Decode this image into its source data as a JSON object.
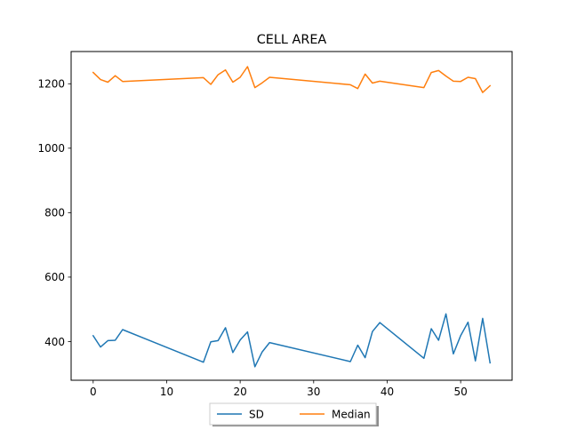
{
  "chart_data": {
    "type": "line",
    "title": "CELL AREA",
    "xlabel": "",
    "ylabel": "",
    "xlim": [
      -3,
      57
    ],
    "ylim": [
      280,
      1300
    ],
    "xticks": [
      0,
      10,
      20,
      30,
      40,
      50
    ],
    "yticks": [
      400,
      600,
      800,
      1000,
      1200
    ],
    "grid": false,
    "legend_position": "bottom-center",
    "series": [
      {
        "name": "SD",
        "color": "#1f77b4",
        "x": [
          0,
          1,
          2,
          3,
          4,
          15,
          16,
          17,
          18,
          19,
          20,
          21,
          22,
          23,
          24,
          35,
          36,
          37,
          38,
          39,
          45,
          46,
          47,
          48,
          49,
          50,
          51,
          52,
          53,
          54
        ],
        "y": [
          418,
          383,
          403,
          404,
          437,
          336,
          399,
          403,
          443,
          366,
          405,
          430,
          322,
          368,
          397,
          338,
          389,
          350,
          431,
          459,
          348,
          440,
          404,
          486,
          362,
          418,
          460,
          340,
          472,
          334
        ]
      },
      {
        "name": "Median",
        "color": "#ff7f0e",
        "x": [
          0,
          1,
          2,
          3,
          4,
          15,
          16,
          17,
          18,
          19,
          20,
          21,
          22,
          23,
          24,
          35,
          36,
          37,
          38,
          39,
          45,
          46,
          47,
          48,
          49,
          50,
          51,
          52,
          53,
          54
        ],
        "y": [
          1235,
          1213,
          1205,
          1225,
          1207,
          1219,
          1198,
          1228,
          1243,
          1205,
          1220,
          1253,
          1188,
          1203,
          1220,
          1197,
          1185,
          1230,
          1202,
          1208,
          1188,
          1235,
          1241,
          1224,
          1208,
          1207,
          1220,
          1216,
          1173,
          1194
        ]
      }
    ]
  }
}
